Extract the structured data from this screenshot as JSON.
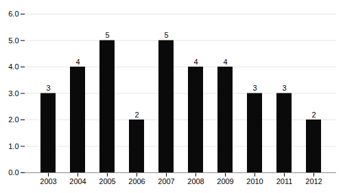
{
  "chart_data": {
    "type": "bar",
    "categories": [
      "2003",
      "2004",
      "2005",
      "2006",
      "2007",
      "2008",
      "2009",
      "2010",
      "2011",
      "2012"
    ],
    "values": [
      3,
      4,
      5,
      2,
      5,
      4,
      4,
      3,
      3,
      2
    ],
    "color": "#0a0a0a",
    "ylim": [
      0,
      6
    ],
    "yticks": [
      0,
      1,
      2,
      3,
      4,
      5,
      6
    ],
    "grid": true,
    "data_labels": true
  }
}
